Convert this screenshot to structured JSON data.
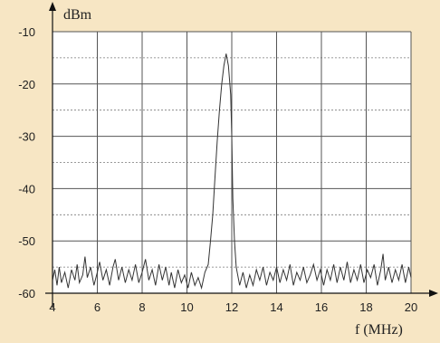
{
  "chart_data": {
    "type": "line",
    "title": "",
    "ylabel": "dBm",
    "xlabel": "f (MHz)",
    "xlim": [
      4,
      20
    ],
    "ylim": [
      -60,
      -10
    ],
    "x_ticks": [
      4,
      6,
      8,
      10,
      12,
      14,
      16,
      18,
      20
    ],
    "x_tick_labels": [
      "4",
      "6",
      "8",
      "10",
      "12",
      "14",
      "16",
      "18",
      "20"
    ],
    "y_ticks": [
      -10,
      -20,
      -30,
      -40,
      -50,
      -60
    ],
    "y_tick_labels": [
      "-10",
      "-20",
      "-30",
      "-40",
      "-50",
      "-60"
    ],
    "grid": true,
    "grid_minor_y": true,
    "series": [
      {
        "color": "#333333",
        "points": [
          [
            4.0,
            -57.5
          ],
          [
            4.1,
            -55.5
          ],
          [
            4.2,
            -58.5
          ],
          [
            4.3,
            -55.0
          ],
          [
            4.4,
            -58.0
          ],
          [
            4.55,
            -56.0
          ],
          [
            4.7,
            -59.0
          ],
          [
            4.85,
            -55.5
          ],
          [
            5.0,
            -57.5
          ],
          [
            5.1,
            -54.5
          ],
          [
            5.2,
            -58.0
          ],
          [
            5.35,
            -56.5
          ],
          [
            5.45,
            -53.0
          ],
          [
            5.55,
            -57.0
          ],
          [
            5.7,
            -55.0
          ],
          [
            5.85,
            -58.5
          ],
          [
            6.0,
            -56.0
          ],
          [
            6.1,
            -54.0
          ],
          [
            6.25,
            -57.5
          ],
          [
            6.4,
            -55.5
          ],
          [
            6.55,
            -58.5
          ],
          [
            6.7,
            -55.0
          ],
          [
            6.8,
            -53.5
          ],
          [
            6.95,
            -57.5
          ],
          [
            7.1,
            -55.0
          ],
          [
            7.25,
            -58.0
          ],
          [
            7.4,
            -55.5
          ],
          [
            7.55,
            -57.5
          ],
          [
            7.7,
            -54.5
          ],
          [
            7.85,
            -58.0
          ],
          [
            8.0,
            -56.0
          ],
          [
            8.15,
            -53.5
          ],
          [
            8.3,
            -57.5
          ],
          [
            8.45,
            -55.5
          ],
          [
            8.6,
            -58.5
          ],
          [
            8.75,
            -54.5
          ],
          [
            8.9,
            -57.5
          ],
          [
            9.05,
            -55.0
          ],
          [
            9.2,
            -58.5
          ],
          [
            9.3,
            -56.0
          ],
          [
            9.45,
            -59.0
          ],
          [
            9.6,
            -55.5
          ],
          [
            9.75,
            -58.0
          ],
          [
            9.9,
            -56.5
          ],
          [
            10.05,
            -59.0
          ],
          [
            10.2,
            -56.0
          ],
          [
            10.35,
            -58.5
          ],
          [
            10.5,
            -57.0
          ],
          [
            10.65,
            -59.0
          ],
          [
            10.8,
            -56.0
          ],
          [
            10.95,
            -54.5
          ],
          [
            11.05,
            -50.0
          ],
          [
            11.15,
            -45.0
          ],
          [
            11.25,
            -38.0
          ],
          [
            11.35,
            -31.0
          ],
          [
            11.45,
            -25.0
          ],
          [
            11.55,
            -20.0
          ],
          [
            11.65,
            -16.5
          ],
          [
            11.75,
            -14.2
          ],
          [
            11.85,
            -16.5
          ],
          [
            11.95,
            -22.0
          ],
          [
            12.0,
            -30.0
          ],
          [
            12.05,
            -42.0
          ],
          [
            12.12,
            -50.0
          ],
          [
            12.2,
            -55.0
          ],
          [
            12.35,
            -58.5
          ],
          [
            12.5,
            -56.0
          ],
          [
            12.65,
            -59.0
          ],
          [
            12.8,
            -56.5
          ],
          [
            12.95,
            -58.5
          ],
          [
            13.1,
            -55.5
          ],
          [
            13.25,
            -57.5
          ],
          [
            13.4,
            -55.0
          ],
          [
            13.55,
            -58.5
          ],
          [
            13.7,
            -56.0
          ],
          [
            13.85,
            -57.5
          ],
          [
            14.0,
            -55.0
          ],
          [
            14.15,
            -58.0
          ],
          [
            14.3,
            -55.5
          ],
          [
            14.45,
            -57.5
          ],
          [
            14.6,
            -54.5
          ],
          [
            14.75,
            -58.5
          ],
          [
            14.9,
            -56.0
          ],
          [
            15.05,
            -57.5
          ],
          [
            15.2,
            -55.0
          ],
          [
            15.35,
            -58.0
          ],
          [
            15.5,
            -56.5
          ],
          [
            15.65,
            -54.5
          ],
          [
            15.8,
            -57.5
          ],
          [
            15.95,
            -55.5
          ],
          [
            16.1,
            -58.5
          ],
          [
            16.25,
            -55.5
          ],
          [
            16.4,
            -57.5
          ],
          [
            16.55,
            -54.5
          ],
          [
            16.7,
            -58.0
          ],
          [
            16.85,
            -55.0
          ],
          [
            17.0,
            -57.5
          ],
          [
            17.15,
            -54.0
          ],
          [
            17.3,
            -58.0
          ],
          [
            17.45,
            -55.5
          ],
          [
            17.6,
            -57.5
          ],
          [
            17.75,
            -54.5
          ],
          [
            17.9,
            -58.0
          ],
          [
            18.05,
            -55.5
          ],
          [
            18.2,
            -57.0
          ],
          [
            18.35,
            -54.5
          ],
          [
            18.5,
            -58.5
          ],
          [
            18.65,
            -55.5
          ],
          [
            18.75,
            -52.5
          ],
          [
            18.85,
            -57.5
          ],
          [
            19.0,
            -55.0
          ],
          [
            19.15,
            -58.0
          ],
          [
            19.3,
            -55.5
          ],
          [
            19.45,
            -57.5
          ],
          [
            19.6,
            -54.5
          ],
          [
            19.75,
            -58.0
          ],
          [
            19.9,
            -55.0
          ],
          [
            20.0,
            -57.0
          ]
        ]
      }
    ]
  }
}
